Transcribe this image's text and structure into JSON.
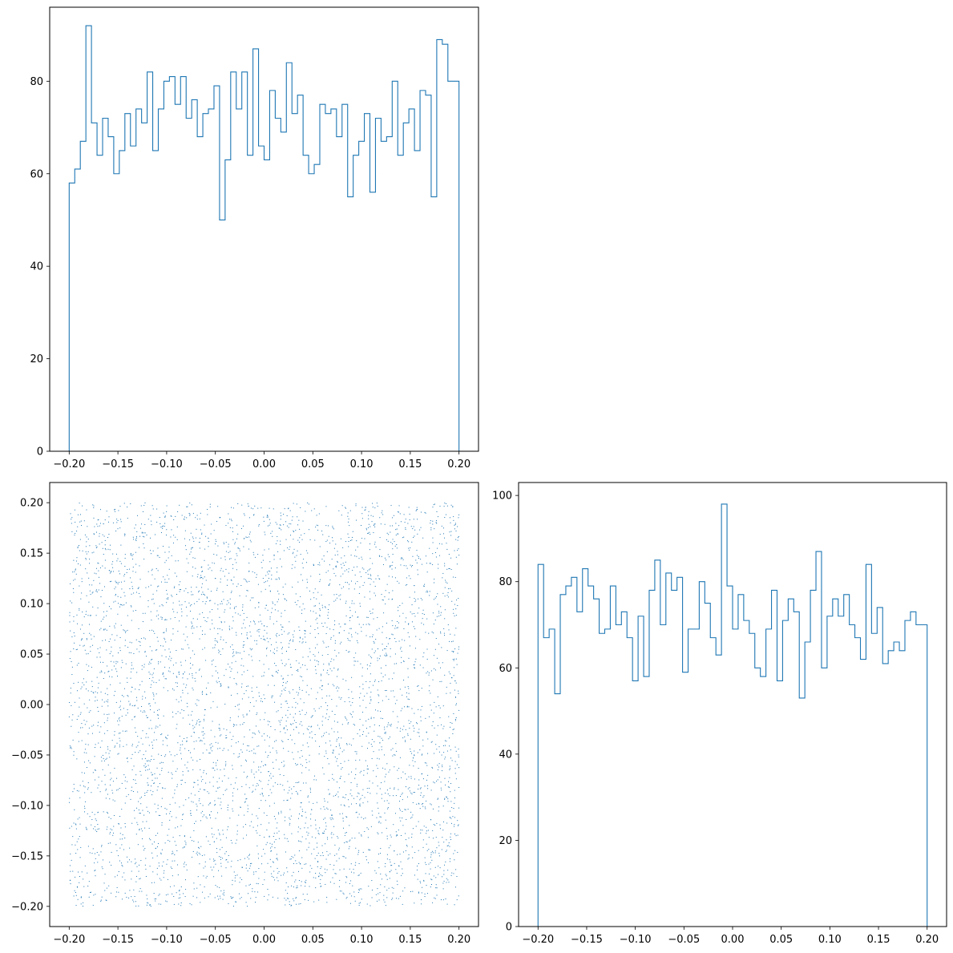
{
  "colors": {
    "series": "#1f77b4",
    "axes": "#000000",
    "background": "#ffffff"
  },
  "chart_data": [
    {
      "id": "hist_top",
      "type": "histogram",
      "title": "",
      "xlabel": "",
      "ylabel": "",
      "xlim": [
        -0.22,
        0.22
      ],
      "ylim": [
        0,
        96
      ],
      "bin_range": [
        -0.2,
        0.2
      ],
      "xticks": [
        -0.2,
        -0.15,
        -0.1,
        -0.05,
        0.0,
        0.05,
        0.1,
        0.15,
        0.2
      ],
      "xtick_labels": [
        "−0.20",
        "−0.15",
        "−0.10",
        "−0.05",
        "0.00",
        "0.05",
        "0.10",
        "0.15",
        "0.20"
      ],
      "yticks": [
        0,
        20,
        40,
        60,
        80
      ],
      "ytick_labels": [
        "0",
        "20",
        "40",
        "60",
        "80"
      ],
      "counts": [
        58,
        61,
        67,
        92,
        71,
        64,
        72,
        68,
        60,
        65,
        73,
        66,
        74,
        71,
        82,
        65,
        74,
        80,
        81,
        75,
        81,
        72,
        76,
        68,
        73,
        74,
        79,
        50,
        63,
        82,
        74,
        82,
        64,
        87,
        66,
        63,
        78,
        72,
        69,
        84,
        73,
        77,
        64,
        60,
        62,
        75,
        73,
        74,
        68,
        75,
        55,
        64,
        67,
        73,
        56,
        72,
        67,
        68,
        80,
        64,
        71,
        74,
        65,
        78,
        77,
        55,
        89,
        88,
        80,
        80
      ]
    },
    {
      "id": "scatter",
      "type": "scatter",
      "title": "",
      "xlabel": "",
      "ylabel": "",
      "xlim": [
        -0.22,
        0.22
      ],
      "ylim": [
        -0.22,
        0.22
      ],
      "xticks": [
        -0.2,
        -0.15,
        -0.1,
        -0.05,
        0.0,
        0.05,
        0.1,
        0.15,
        0.2
      ],
      "xtick_labels": [
        "−0.20",
        "−0.15",
        "−0.10",
        "−0.05",
        "0.00",
        "0.05",
        "0.10",
        "0.15",
        "0.20"
      ],
      "yticks": [
        -0.2,
        -0.15,
        -0.1,
        -0.05,
        0.0,
        0.05,
        0.1,
        0.15,
        0.2
      ],
      "ytick_labels": [
        "−0.20",
        "−0.15",
        "−0.10",
        "−0.05",
        "0.00",
        "0.05",
        "0.10",
        "0.15",
        "0.20"
      ],
      "point_distribution": "uniform",
      "point_count": 5000,
      "x_range": [
        -0.2,
        0.2
      ],
      "y_range": [
        -0.2,
        0.2
      ]
    },
    {
      "id": "hist_right",
      "type": "histogram",
      "title": "",
      "xlabel": "",
      "ylabel": "",
      "xlim": [
        -0.22,
        0.22
      ],
      "ylim": [
        0,
        103
      ],
      "bin_range": [
        -0.2,
        0.2
      ],
      "xticks": [
        -0.2,
        -0.15,
        -0.1,
        -0.05,
        0.0,
        0.05,
        0.1,
        0.15,
        0.2
      ],
      "xtick_labels": [
        "−0.20",
        "−0.15",
        "−0.10",
        "−0.05",
        "0.00",
        "0.05",
        "0.10",
        "0.15",
        "0.20"
      ],
      "yticks": [
        0,
        20,
        40,
        60,
        80,
        100
      ],
      "ytick_labels": [
        "0",
        "20",
        "40",
        "60",
        "80",
        "100"
      ],
      "counts": [
        84,
        67,
        69,
        54,
        77,
        79,
        81,
        73,
        83,
        79,
        76,
        68,
        69,
        79,
        70,
        73,
        67,
        57,
        72,
        58,
        78,
        85,
        70,
        82,
        78,
        81,
        59,
        69,
        69,
        80,
        75,
        67,
        63,
        98,
        79,
        69,
        77,
        71,
        68,
        60,
        58,
        69,
        78,
        57,
        71,
        76,
        73,
        53,
        66,
        78,
        87,
        60,
        72,
        76,
        72,
        77,
        70,
        67,
        62,
        84,
        68,
        74,
        61,
        64,
        66,
        64,
        71,
        73,
        70,
        70
      ]
    }
  ]
}
